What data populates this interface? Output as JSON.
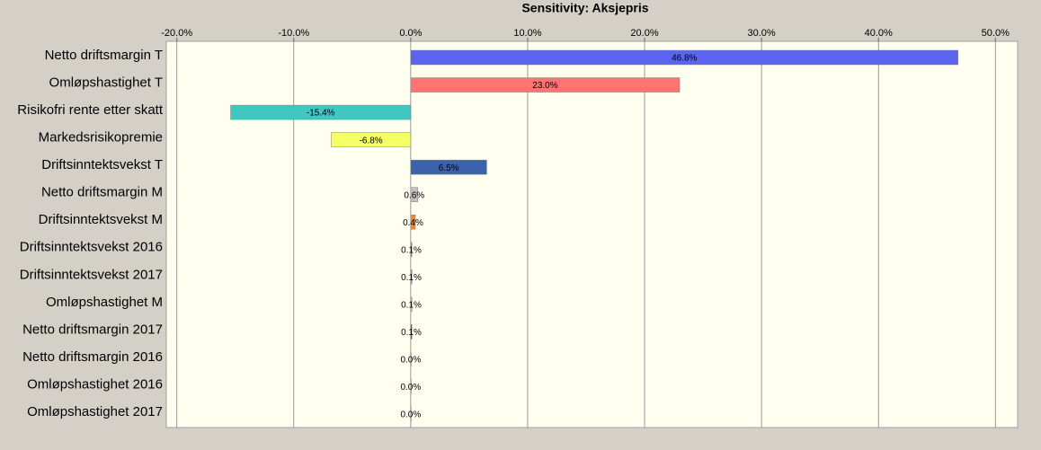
{
  "chart_data": {
    "type": "bar",
    "orientation": "horizontal",
    "title": "Sensitivity: Aksjepris",
    "categories": [
      "Netto driftsmargin T",
      "Omløpshastighet T",
      "Risikofri rente etter skatt",
      "Markedsrisikopremie",
      "Driftsinntektsvekst T",
      "Netto driftsmargin M",
      "Driftsinntektsvekst M",
      "Driftsinntektsvekst 2016",
      "Driftsinntektsvekst 2017",
      "Omløpshastighet M",
      "Netto driftsmargin 2017",
      "Netto driftsmargin 2016",
      "Omløpshastighet 2016",
      "Omløpshastighet 2017"
    ],
    "values": [
      46.8,
      23.0,
      -15.4,
      -6.8,
      6.5,
      0.6,
      0.4,
      0.1,
      0.1,
      0.1,
      0.1,
      0.0,
      0.0,
      0.0
    ],
    "value_labels": [
      "46.8%",
      "23.0%",
      "-15.4%",
      "-6.8%",
      "6.5%",
      "0.6%",
      "0.4%",
      "0.1%",
      "0.1%",
      "0.1%",
      "0.1%",
      "0.0%",
      "0.0%",
      "0.0%"
    ],
    "colors": [
      "#5a64f0",
      "#ff7373",
      "#40c8c0",
      "#f4ff66",
      "#3d62ac",
      "#c0c0c0",
      "#f08a30",
      "#40c040",
      "#8080ff",
      "#d8b040",
      "#a03080",
      "#808080",
      "#808080",
      "#808080"
    ],
    "xlim": [
      -20.9,
      51.9
    ],
    "xticks": [
      {
        "value": -20,
        "label": "-20.0%"
      },
      {
        "value": -10,
        "label": "-10.0%"
      },
      {
        "value": 0,
        "label": "0.0%"
      },
      {
        "value": 10,
        "label": "10.0%"
      },
      {
        "value": 20,
        "label": "20.0%"
      },
      {
        "value": 30,
        "label": "30.0%"
      },
      {
        "value": 40,
        "label": "40.0%"
      },
      {
        "value": 50,
        "label": "50.0%"
      }
    ],
    "grid": true
  }
}
